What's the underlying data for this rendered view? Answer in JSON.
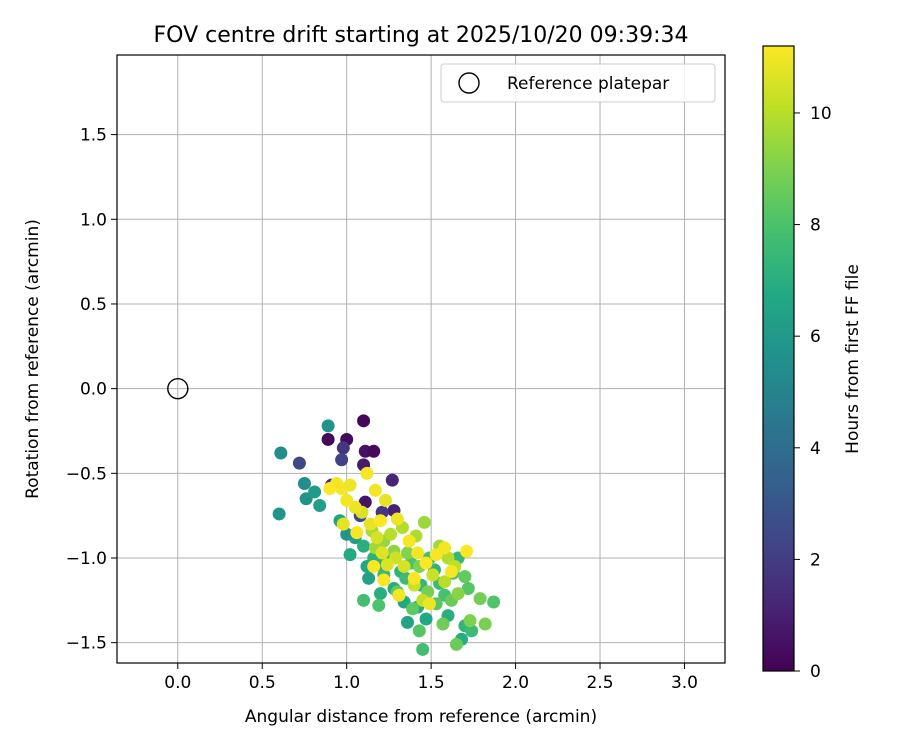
{
  "chart_data": {
    "type": "scatter",
    "title": "FOV centre drift starting at 2025/10/20 09:39:34",
    "xlabel": "Angular distance from reference (arcmin)",
    "ylabel": "Rotation from reference (arcmin)",
    "xlim": [
      -0.36,
      3.24
    ],
    "ylim": [
      -1.62,
      1.97
    ],
    "xticks": [
      0.0,
      0.5,
      1.0,
      1.5,
      2.0,
      2.5,
      3.0
    ],
    "yticks": [
      -1.5,
      -1.0,
      -0.5,
      0.0,
      0.5,
      1.0,
      1.5
    ],
    "grid": true,
    "legend": {
      "position": "top-right",
      "entries": [
        "Reference platepar"
      ]
    },
    "reference_point": {
      "x": 0.0,
      "y": 0.0,
      "label": "Reference platepar"
    },
    "colorbar": {
      "label": "Hours from first FF file",
      "min": 0,
      "max": 11.2,
      "ticks": [
        0,
        2,
        4,
        6,
        8,
        10
      ],
      "colormap": "viridis"
    },
    "points": [
      [
        1.1,
        -0.19,
        0.2
      ],
      [
        0.89,
        -0.3,
        0.2
      ],
      [
        1.0,
        -0.3,
        0.3
      ],
      [
        1.11,
        -0.37,
        0.5
      ],
      [
        1.16,
        -0.37,
        0.3
      ],
      [
        1.1,
        -0.45,
        0.8
      ],
      [
        1.27,
        -0.54,
        1.2
      ],
      [
        0.98,
        -0.35,
        1.8
      ],
      [
        0.97,
        -0.42,
        2.2
      ],
      [
        0.72,
        -0.44,
        2.5
      ],
      [
        0.91,
        -0.57,
        1.3
      ],
      [
        1.11,
        -0.67,
        0.6
      ],
      [
        1.28,
        -0.72,
        1.0
      ],
      [
        1.21,
        -0.73,
        1.8
      ],
      [
        1.08,
        -0.75,
        2.5
      ],
      [
        0.89,
        -0.22,
        5.7
      ],
      [
        0.61,
        -0.38,
        5.4
      ],
      [
        0.6,
        -0.74,
        5.8
      ],
      [
        0.75,
        -0.56,
        5.4
      ],
      [
        0.76,
        -0.65,
        5.7
      ],
      [
        0.81,
        -0.61,
        6.1
      ],
      [
        0.84,
        -0.69,
        6.3
      ],
      [
        0.96,
        -0.78,
        6.5
      ],
      [
        1.0,
        -0.86,
        5.8
      ],
      [
        1.05,
        -0.88,
        6.2
      ],
      [
        1.02,
        -0.98,
        6.8
      ],
      [
        1.1,
        -0.93,
        7.0
      ],
      [
        1.12,
        -1.05,
        6.6
      ],
      [
        1.13,
        -1.12,
        6.4
      ],
      [
        1.16,
        -1.0,
        7.1
      ],
      [
        1.19,
        -1.04,
        7.3
      ],
      [
        1.22,
        -1.1,
        7.5
      ],
      [
        1.25,
        -1.01,
        7.7
      ],
      [
        1.2,
        -1.21,
        7.0
      ],
      [
        1.28,
        -1.18,
        6.9
      ],
      [
        1.32,
        -1.08,
        7.2
      ],
      [
        1.35,
        -1.12,
        7.6
      ],
      [
        1.38,
        -1.03,
        8.0
      ],
      [
        1.34,
        -1.26,
        6.7
      ],
      [
        1.36,
        -1.38,
        6.5
      ],
      [
        1.42,
        -1.29,
        6.9
      ],
      [
        1.44,
        -1.16,
        7.4
      ],
      [
        1.47,
        -1.36,
        6.7
      ],
      [
        1.49,
        -1.0,
        7.8
      ],
      [
        1.52,
        -1.07,
        7.2
      ],
      [
        1.55,
        -1.15,
        7.6
      ],
      [
        1.58,
        -1.22,
        7.9
      ],
      [
        1.6,
        -1.34,
        7.0
      ],
      [
        1.63,
        -1.09,
        8.1
      ],
      [
        1.66,
        -1.0,
        7.4
      ],
      [
        1.68,
        -1.48,
        6.9
      ],
      [
        1.7,
        -1.4,
        7.3
      ],
      [
        1.72,
        -1.18,
        8.2
      ],
      [
        1.74,
        -1.43,
        7.6
      ],
      [
        1.87,
        -1.26,
        8.1
      ],
      [
        1.1,
        -1.25,
        7.8
      ],
      [
        1.19,
        -1.28,
        8.0
      ],
      [
        1.45,
        -1.54,
        7.8
      ],
      [
        1.43,
        -1.43,
        8.2
      ],
      [
        1.65,
        -1.51,
        8.6
      ],
      [
        1.3,
        -1.2,
        8.5
      ],
      [
        1.39,
        -1.3,
        8.4
      ],
      [
        1.53,
        -1.27,
        8.3
      ],
      [
        1.57,
        -1.39,
        8.7
      ],
      [
        1.62,
        -1.25,
        8.6
      ],
      [
        1.7,
        -1.11,
        8.5
      ],
      [
        1.79,
        -1.24,
        8.8
      ],
      [
        1.82,
        -1.39,
        8.9
      ],
      [
        1.73,
        -1.37,
        9.0
      ],
      [
        1.66,
        -1.21,
        9.2
      ],
      [
        1.48,
        -1.2,
        8.9
      ],
      [
        1.43,
        -1.05,
        9.0
      ],
      [
        1.36,
        -0.97,
        9.1
      ],
      [
        1.28,
        -0.96,
        9.3
      ],
      [
        1.22,
        -0.9,
        9.4
      ],
      [
        1.17,
        -0.94,
        9.6
      ],
      [
        1.15,
        -0.84,
        9.7
      ],
      [
        1.46,
        -0.79,
        9.5
      ],
      [
        1.41,
        -0.87,
        9.8
      ],
      [
        1.33,
        -0.82,
        9.9
      ],
      [
        1.26,
        -0.86,
        10.0
      ],
      [
        1.55,
        -0.93,
        9.6
      ],
      [
        1.6,
        -1.0,
        9.9
      ],
      [
        1.64,
        -1.05,
        10.1
      ],
      [
        1.58,
        -1.14,
        10.0
      ],
      [
        1.51,
        -1.1,
        10.3
      ],
      [
        1.45,
        -1.25,
        10.2
      ],
      [
        1.4,
        -1.16,
        10.4
      ],
      [
        1.34,
        -1.05,
        10.5
      ],
      [
        1.29,
        -1.0,
        10.4
      ],
      [
        1.24,
        -1.04,
        10.6
      ],
      [
        1.21,
        -0.97,
        10.7
      ],
      [
        1.18,
        -0.88,
        10.5
      ],
      [
        1.14,
        -0.8,
        10.8
      ],
      [
        1.09,
        -0.73,
        10.6
      ],
      [
        1.05,
        -0.7,
        10.9
      ],
      [
        1.0,
        -0.66,
        11.0
      ],
      [
        0.97,
        -0.59,
        11.1
      ],
      [
        0.94,
        -0.56,
        11.0
      ],
      [
        0.9,
        -0.59,
        11.2
      ],
      [
        1.02,
        -0.57,
        10.9
      ],
      [
        1.12,
        -0.5,
        11.1
      ],
      [
        1.17,
        -0.6,
        11.0
      ],
      [
        1.23,
        -0.66,
        10.8
      ],
      [
        1.3,
        -0.77,
        10.9
      ],
      [
        1.37,
        -0.9,
        11.1
      ],
      [
        1.42,
        -0.97,
        11.0
      ],
      [
        1.47,
        -1.03,
        11.2
      ],
      [
        1.53,
        -0.98,
        11.1
      ],
      [
        1.58,
        -0.94,
        11.0
      ],
      [
        1.71,
        -0.96,
        11.2
      ],
      [
        1.62,
        -1.08,
        11.1
      ],
      [
        1.4,
        -1.12,
        11.2
      ],
      [
        1.22,
        -1.13,
        11.1
      ],
      [
        1.31,
        -1.22,
        11.0
      ],
      [
        1.49,
        -1.27,
        10.9
      ],
      [
        1.16,
        -1.05,
        11.2
      ],
      [
        1.06,
        -0.85,
        11.1
      ],
      [
        0.98,
        -0.8,
        10.8
      ],
      [
        1.2,
        -0.78,
        11.2
      ]
    ]
  }
}
